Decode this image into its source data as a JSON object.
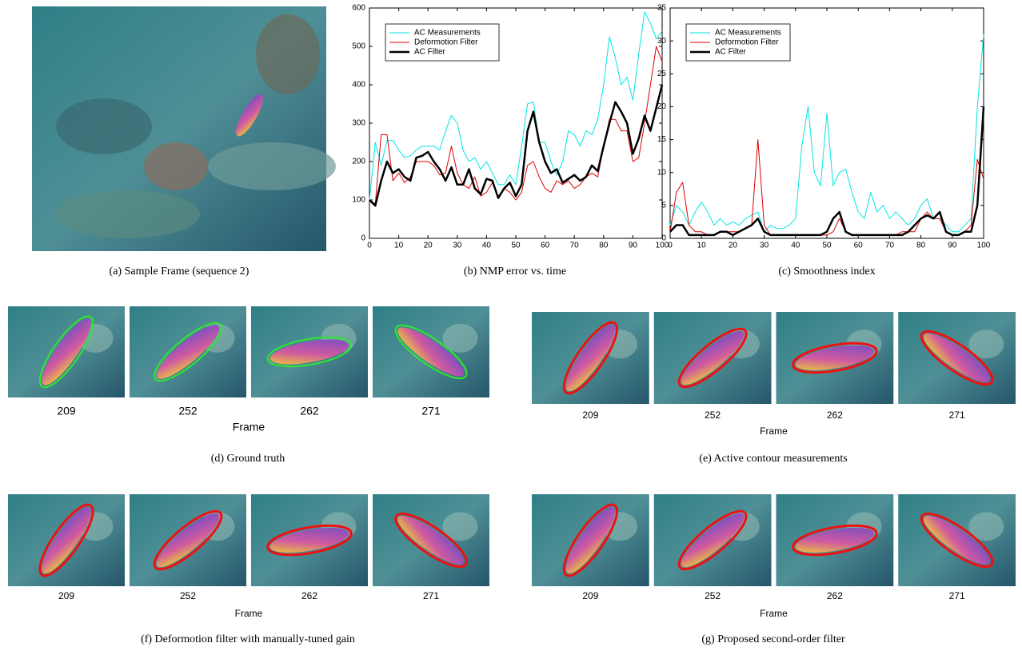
{
  "chart_data": [
    {
      "type": "line",
      "caption": "(b) NMP error vs. time",
      "x": [
        0,
        2,
        4,
        6,
        8,
        10,
        12,
        14,
        16,
        18,
        20,
        22,
        24,
        26,
        28,
        30,
        32,
        34,
        36,
        38,
        40,
        42,
        44,
        46,
        48,
        50,
        52,
        54,
        56,
        58,
        60,
        62,
        64,
        66,
        68,
        70,
        72,
        74,
        76,
        78,
        80,
        82,
        84,
        86,
        88,
        90,
        92,
        94,
        96,
        98,
        100
      ],
      "xlim": [
        0,
        100
      ],
      "xticks": [
        0,
        10,
        20,
        30,
        40,
        50,
        60,
        70,
        80,
        90,
        100
      ],
      "ylim": [
        0,
        600
      ],
      "yticks": [
        0,
        100,
        200,
        300,
        400,
        500,
        600
      ],
      "legend": "upper left",
      "series": [
        {
          "name": "AC Measurements",
          "color": "#00e5e5",
          "linewidth": 1,
          "values": [
            100,
            250,
            190,
            255,
            255,
            230,
            210,
            215,
            230,
            240,
            240,
            240,
            230,
            280,
            320,
            300,
            230,
            200,
            210,
            180,
            200,
            170,
            140,
            140,
            165,
            140,
            240,
            350,
            355,
            250,
            250,
            200,
            165,
            200,
            280,
            270,
            240,
            280,
            270,
            310,
            400,
            525,
            470,
            400,
            420,
            360,
            480,
            590,
            560,
            520,
            540
          ]
        },
        {
          "name": "Deformotion Filter",
          "color": "#e00000",
          "linewidth": 1,
          "values": [
            100,
            90,
            270,
            270,
            150,
            170,
            145,
            160,
            200,
            200,
            200,
            190,
            165,
            170,
            240,
            170,
            140,
            130,
            160,
            110,
            120,
            145,
            110,
            130,
            120,
            100,
            120,
            190,
            200,
            160,
            130,
            120,
            150,
            140,
            150,
            130,
            140,
            160,
            170,
            160,
            240,
            310,
            310,
            280,
            280,
            200,
            210,
            300,
            400,
            500,
            460
          ]
        },
        {
          "name": "AC Filter",
          "color": "#000000",
          "linewidth": 2.5,
          "values": [
            100,
            85,
            150,
            200,
            170,
            180,
            160,
            150,
            210,
            215,
            225,
            200,
            180,
            150,
            185,
            140,
            140,
            180,
            130,
            115,
            155,
            150,
            105,
            130,
            145,
            110,
            140,
            280,
            330,
            250,
            200,
            170,
            180,
            145,
            155,
            165,
            150,
            160,
            190,
            175,
            240,
            300,
            355,
            330,
            300,
            220,
            260,
            320,
            280,
            340,
            400
          ]
        }
      ]
    },
    {
      "type": "line",
      "caption": "(c) Smoothness index",
      "x": [
        0,
        2,
        4,
        6,
        8,
        10,
        12,
        14,
        16,
        18,
        20,
        22,
        24,
        26,
        28,
        30,
        32,
        34,
        36,
        38,
        40,
        42,
        44,
        46,
        48,
        50,
        52,
        54,
        56,
        58,
        60,
        62,
        64,
        66,
        68,
        70,
        72,
        74,
        76,
        78,
        80,
        82,
        84,
        86,
        88,
        90,
        92,
        94,
        96,
        98,
        100
      ],
      "xlim": [
        0,
        100
      ],
      "xticks": [
        0,
        10,
        20,
        30,
        40,
        50,
        60,
        70,
        80,
        90,
        100
      ],
      "ylim": [
        0,
        35
      ],
      "yticks": [
        0,
        5,
        10,
        15,
        20,
        25,
        30,
        35
      ],
      "legend": "upper left",
      "series": [
        {
          "name": "AC Measurements",
          "color": "#00e5e5",
          "linewidth": 1,
          "values": [
            2,
            5,
            4,
            2,
            4,
            5.5,
            4,
            2,
            3,
            2,
            2.5,
            2,
            3,
            3.5,
            4,
            1,
            2,
            1.5,
            1.5,
            2,
            3,
            14,
            20,
            10,
            8,
            19,
            8,
            10,
            10.5,
            7,
            4,
            3,
            7,
            4,
            5,
            3,
            4,
            3,
            2,
            3,
            5,
            6,
            3,
            3,
            2,
            1,
            1,
            2,
            3,
            20,
            31
          ]
        },
        {
          "name": "Deformotion Filter",
          "color": "#e00000",
          "linewidth": 1,
          "values": [
            1,
            7,
            8.5,
            2,
            1,
            1,
            0.5,
            0.5,
            1,
            1,
            1,
            1,
            1.5,
            2,
            15,
            2,
            0.5,
            0.5,
            0.5,
            0.5,
            0.5,
            0.5,
            0.5,
            0.5,
            0.5,
            0.5,
            1,
            3,
            1,
            0.5,
            0.5,
            0.5,
            0.5,
            0.5,
            0.5,
            0.5,
            0.5,
            1,
            1,
            1,
            3,
            4,
            3,
            3,
            1,
            0.5,
            0.5,
            1,
            2,
            12,
            9
          ]
        },
        {
          "name": "AC Filter",
          "color": "#000000",
          "linewidth": 2.5,
          "values": [
            1,
            2,
            2,
            0.5,
            0.5,
            0.5,
            0.5,
            0.5,
            1,
            1,
            0.5,
            1,
            1.5,
            2,
            3,
            1,
            0.5,
            0.5,
            0.5,
            0.5,
            0.5,
            0.5,
            0.5,
            0.5,
            0.5,
            1,
            3,
            4,
            1,
            0.5,
            0.5,
            0.5,
            0.5,
            0.5,
            0.5,
            0.5,
            0.5,
            0.5,
            1,
            2,
            3,
            3.5,
            3,
            4,
            1,
            0.5,
            0.5,
            1,
            1,
            5,
            20
          ]
        }
      ]
    }
  ],
  "figures": [
    {
      "caption": "(a) Sample Frame (sequence 2)"
    },
    {
      "caption": "(d) Ground truth",
      "frames": [
        "209",
        "252",
        "262",
        "271"
      ],
      "xlabel": "Frame"
    },
    {
      "caption": "(e) Active contour measurements",
      "frames": [
        "209",
        "252",
        "262",
        "271"
      ],
      "xlabel": "Frame"
    },
    {
      "caption": "(f) Deformotion filter with manually-tuned gain",
      "frames": [
        "209",
        "252",
        "262",
        "271"
      ],
      "xlabel": "Frame"
    },
    {
      "caption": "(g) Proposed second-order filter",
      "frames": [
        "209",
        "252",
        "262",
        "271"
      ],
      "xlabel": "Frame"
    }
  ]
}
